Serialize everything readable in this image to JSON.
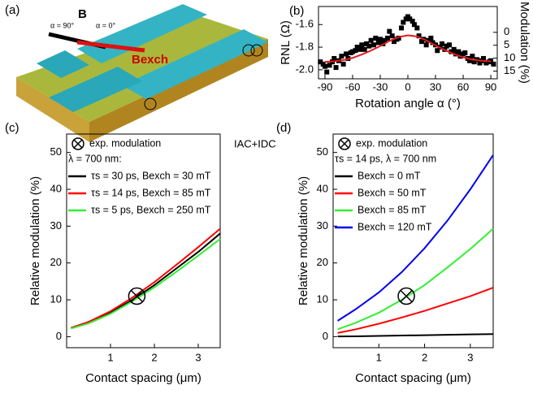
{
  "schematic": {
    "panel_label": "(a)",
    "field": "B",
    "angle_90": "α = 90°",
    "angle_0": "α = 0°",
    "exchange": "Bexch",
    "current": "IAC+IDC"
  },
  "chart_data": [
    {
      "type": "scatter",
      "panel_label": "(b)",
      "xlabel": "Rotation angle α (°)",
      "ylabel": "RNL (Ω)",
      "y2label": "Modulation (%)",
      "xlim": [
        -97,
        97
      ],
      "xticks": [
        -90,
        -60,
        -30,
        0,
        30,
        60,
        90
      ],
      "ylim": [
        -2.08,
        -1.44
      ],
      "yticks": [
        -1.6,
        -1.8,
        {
          "value": -2,
          "label": "-2.0"
        }
      ],
      "y2lim": [
        18,
        -10
      ],
      "y2ticks": [
        0,
        5,
        10,
        15
      ],
      "series": [
        {
          "type": "scatter",
          "color": "#000000",
          "x": [
            -95,
            -92,
            -90,
            -88,
            -85,
            -82,
            -80,
            -78,
            -75,
            -72,
            -70,
            -67,
            -65,
            -62,
            -60,
            -57,
            -55,
            -52,
            -50,
            -47,
            -45,
            -42,
            -40,
            -37,
            -35,
            -32,
            -30,
            -27,
            -25,
            -22,
            -20,
            -17,
            -15,
            -12,
            -10,
            -7,
            -5,
            -2,
            0,
            2,
            5,
            7,
            10,
            12,
            15,
            17,
            20,
            22,
            25,
            27,
            30,
            32,
            35,
            37,
            40,
            42,
            45,
            47,
            50,
            52,
            55,
            57,
            60,
            62,
            65,
            67,
            70,
            72,
            75,
            78,
            80,
            82,
            85,
            88,
            90,
            93
          ],
          "values": [
            -1.93,
            -1.95,
            -1.97,
            -2.02,
            -1.96,
            -1.93,
            -1.9,
            -1.98,
            -1.92,
            -1.88,
            -1.95,
            -1.86,
            -1.9,
            -1.85,
            -1.84,
            -1.83,
            -1.8,
            -1.82,
            -1.78,
            -1.82,
            -1.77,
            -1.79,
            -1.74,
            -1.78,
            -1.72,
            -1.76,
            -1.73,
            -1.77,
            -1.74,
            -1.72,
            -1.66,
            -1.7,
            -1.75,
            -1.73,
            -1.72,
            -1.63,
            -1.58,
            -1.55,
            -1.53,
            -1.55,
            -1.57,
            -1.6,
            -1.63,
            -1.7,
            -1.75,
            -1.73,
            -1.78,
            -1.74,
            -1.72,
            -1.76,
            -1.78,
            -1.83,
            -1.8,
            -1.77,
            -1.82,
            -1.79,
            -1.78,
            -1.84,
            -1.82,
            -1.86,
            -1.84,
            -1.88,
            -1.86,
            -1.85,
            -1.9,
            -1.92,
            -1.88,
            -1.93,
            -1.91,
            -1.94,
            -1.92,
            -1.9,
            -1.94,
            -1.93,
            -1.92,
            -1.95
          ]
        },
        {
          "type": "line",
          "color": "#e31a1c",
          "x": [
            -90,
            -80,
            -70,
            -60,
            -50,
            -40,
            -30,
            -20,
            -10,
            0,
            10,
            20,
            30,
            40,
            50,
            60,
            70,
            80,
            90
          ],
          "values": [
            -1.93,
            -1.925,
            -1.915,
            -1.895,
            -1.865,
            -1.83,
            -1.79,
            -1.745,
            -1.71,
            -1.695,
            -1.705,
            -1.74,
            -1.785,
            -1.825,
            -1.86,
            -1.89,
            -1.91,
            -1.92,
            -1.925
          ]
        }
      ]
    },
    {
      "type": "line",
      "panel_label": "(c)",
      "xlabel": "Contact spacing (μm)",
      "ylabel": "Relative modulation (%)",
      "xlim": [
        0,
        3.5
      ],
      "xticks": [
        1,
        2,
        3
      ],
      "ylim": [
        -3,
        55
      ],
      "yticks": [
        0,
        10,
        20,
        30,
        40,
        50
      ],
      "legend_note": "λ = 700 nm:",
      "experiment": {
        "label": "exp. modulation",
        "x": 1.6,
        "y": 11
      },
      "x": [
        0.1,
        0.5,
        1,
        1.5,
        2,
        2.5,
        3,
        3.5
      ],
      "series": [
        {
          "name": "τs = 30 ps, Bexch = 30 mT",
          "color": "#000000",
          "values": [
            2.3,
            3.8,
            6.5,
            10,
            14,
            18.5,
            23,
            28
          ]
        },
        {
          "name": "τs = 14 ps, Bexch = 85 mT",
          "color": "#ff0000",
          "values": [
            2.4,
            4,
            6.9,
            10.6,
            14.8,
            19.5,
            24.3,
            29.3
          ]
        },
        {
          "name": "τs = 5 ps, Bexch = 250 mT",
          "color": "#33ee33",
          "values": [
            2.2,
            3.6,
            6.2,
            9.6,
            13.4,
            17.6,
            22,
            26.5
          ]
        }
      ]
    },
    {
      "type": "line",
      "panel_label": "(d)",
      "xlabel": "Contact spacing (μm)",
      "ylabel": "Relative modulation (%)",
      "xlim": [
        0,
        3.5
      ],
      "xticks": [
        1,
        2,
        3
      ],
      "ylim": [
        -3,
        55
      ],
      "yticks": [
        0,
        10,
        20,
        30,
        40,
        50
      ],
      "legend_note": "τs = 14 ps, λ = 700 nm",
      "experiment": {
        "label": "exp. modulation",
        "x": 1.6,
        "y": 11
      },
      "x": [
        0.1,
        0.5,
        1,
        1.5,
        2,
        2.5,
        3,
        3.5
      ],
      "series": [
        {
          "name": "Bexch = 0 mT",
          "color": "#000000",
          "values": [
            0.05,
            0.1,
            0.2,
            0.3,
            0.4,
            0.5,
            0.6,
            0.7
          ]
        },
        {
          "name": "Bexch = 50 mT",
          "color": "#ff0000",
          "values": [
            1,
            2,
            3.5,
            5.2,
            7,
            9,
            11,
            13.3
          ]
        },
        {
          "name": "Bexch = 85 mT",
          "color": "#33ee33",
          "values": [
            2,
            3.8,
            6.5,
            10,
            14,
            18.8,
            23.8,
            29.3
          ]
        },
        {
          "name": "Bexch = 120 mT",
          "color": "#0000ee",
          "values": [
            4.3,
            7.5,
            12,
            17.5,
            24,
            31.5,
            40,
            49.3
          ]
        }
      ]
    }
  ]
}
